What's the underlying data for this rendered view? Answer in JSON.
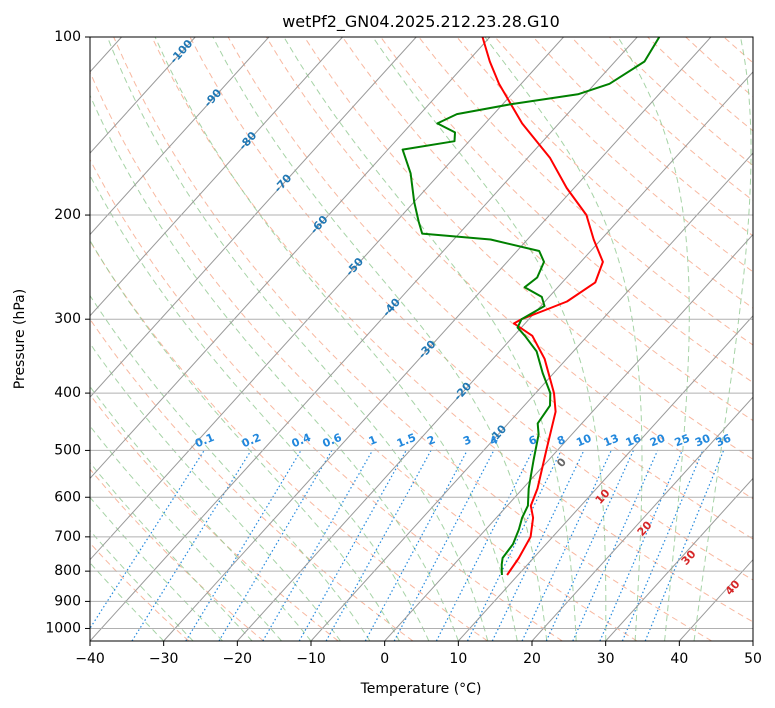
{
  "chart_data": {
    "type": "line",
    "title": "wetPf2_GN04.2025.212.23.28.G10",
    "xlabel": "Temperature (°C)",
    "ylabel": "Pressure (hPa)",
    "xlim": [
      -40,
      50
    ],
    "ylim": [
      1050,
      100
    ],
    "y_scale": "log",
    "grid": true,
    "x_ticks": [
      -40,
      -30,
      -20,
      -10,
      0,
      10,
      20,
      30,
      40,
      50
    ],
    "y_ticks": [
      100,
      200,
      300,
      400,
      500,
      600,
      700,
      800,
      900,
      1000
    ],
    "colors": {
      "temperature": "#ff0000",
      "dewpoint": "#008000",
      "isotherm": "#999999",
      "dry_adiabat": "#f5a080",
      "moist_adiabat": "#90c890",
      "mixing_ratio": "#2288dd",
      "isotherm_label": "#1f77b4",
      "moist_label": "#d62728"
    },
    "series": [
      {
        "role": "temperature",
        "points": [
          {
            "p": 812,
            "t": 8.5
          },
          {
            "p": 760,
            "t": 8.0
          },
          {
            "p": 700,
            "t": 7.0
          },
          {
            "p": 650,
            "t": 5.0
          },
          {
            "p": 620,
            "t": 3.2
          },
          {
            "p": 580,
            "t": 2.0
          },
          {
            "p": 500,
            "t": -1.5
          },
          {
            "p": 430,
            "t": -5.0
          },
          {
            "p": 400,
            "t": -7.5
          },
          {
            "p": 350,
            "t": -13.0
          },
          {
            "p": 320,
            "t": -17.5
          },
          {
            "p": 305,
            "t": -21.5
          },
          {
            "p": 300,
            "t": -21.0
          },
          {
            "p": 290,
            "t": -19.0
          },
          {
            "p": 280,
            "t": -17.0
          },
          {
            "p": 260,
            "t": -15.5
          },
          {
            "p": 240,
            "t": -17.0
          },
          {
            "p": 220,
            "t": -21.0
          },
          {
            "p": 200,
            "t": -25.0
          },
          {
            "p": 180,
            "t": -31.0
          },
          {
            "p": 160,
            "t": -37.0
          },
          {
            "p": 140,
            "t": -45.0
          },
          {
            "p": 120,
            "t": -53.0
          },
          {
            "p": 110,
            "t": -57.0
          },
          {
            "p": 100,
            "t": -61.0
          }
        ]
      },
      {
        "role": "dewpoint",
        "points": [
          {
            "p": 812,
            "t": 7.8
          },
          {
            "p": 780,
            "t": 6.5
          },
          {
            "p": 760,
            "t": 5.8
          },
          {
            "p": 720,
            "t": 5.5
          },
          {
            "p": 680,
            "t": 4.5
          },
          {
            "p": 650,
            "t": 3.5
          },
          {
            "p": 620,
            "t": 2.8
          },
          {
            "p": 580,
            "t": 0.8
          },
          {
            "p": 520,
            "t": -2.0
          },
          {
            "p": 470,
            "t": -4.5
          },
          {
            "p": 450,
            "t": -6.0
          },
          {
            "p": 420,
            "t": -6.5
          },
          {
            "p": 400,
            "t": -8.0
          },
          {
            "p": 370,
            "t": -11.5
          },
          {
            "p": 340,
            "t": -15.0
          },
          {
            "p": 320,
            "t": -18.5
          },
          {
            "p": 310,
            "t": -20.5
          },
          {
            "p": 300,
            "t": -21.0
          },
          {
            "p": 295,
            "t": -20.5
          },
          {
            "p": 285,
            "t": -19.5
          },
          {
            "p": 275,
            "t": -21.0
          },
          {
            "p": 265,
            "t": -24.5
          },
          {
            "p": 255,
            "t": -24.0
          },
          {
            "p": 240,
            "t": -25.0
          },
          {
            "p": 230,
            "t": -27.0
          },
          {
            "p": 220,
            "t": -35.0
          },
          {
            "p": 215,
            "t": -45.0
          },
          {
            "p": 205,
            "t": -47.0
          },
          {
            "p": 190,
            "t": -50.0
          },
          {
            "p": 170,
            "t": -54.0
          },
          {
            "p": 155,
            "t": -58.0
          },
          {
            "p": 150,
            "t": -52.0
          },
          {
            "p": 145,
            "t": -53.0
          },
          {
            "p": 140,
            "t": -56.5
          },
          {
            "p": 135,
            "t": -55.0
          },
          {
            "p": 130,
            "t": -49.0
          },
          {
            "p": 125,
            "t": -41.0
          },
          {
            "p": 120,
            "t": -38.0
          },
          {
            "p": 110,
            "t": -36.0
          },
          {
            "p": 100,
            "t": -37.0
          }
        ]
      }
    ],
    "isotherm_labels": [
      {
        "t": -100,
        "text": "-100"
      },
      {
        "t": -90,
        "text": "-90"
      },
      {
        "t": -80,
        "text": "-80"
      },
      {
        "t": -70,
        "text": "-70"
      },
      {
        "t": -60,
        "text": "-60"
      },
      {
        "t": -50,
        "text": "-50"
      },
      {
        "t": -40,
        "text": "-40"
      },
      {
        "t": -30,
        "text": "-30"
      },
      {
        "t": -20,
        "text": "-20"
      },
      {
        "t": -10,
        "text": "-10"
      }
    ],
    "mixing_ratio_labels": [
      "0.1",
      "0.2",
      "0.4",
      "0.6",
      "1",
      "1.5",
      "2",
      "3",
      "4",
      "6",
      "8",
      "10",
      "13",
      "16",
      "20",
      "25",
      "30",
      "36"
    ],
    "moist_adiabat_labels": [
      "0",
      "10",
      "20",
      "30",
      "40"
    ]
  }
}
